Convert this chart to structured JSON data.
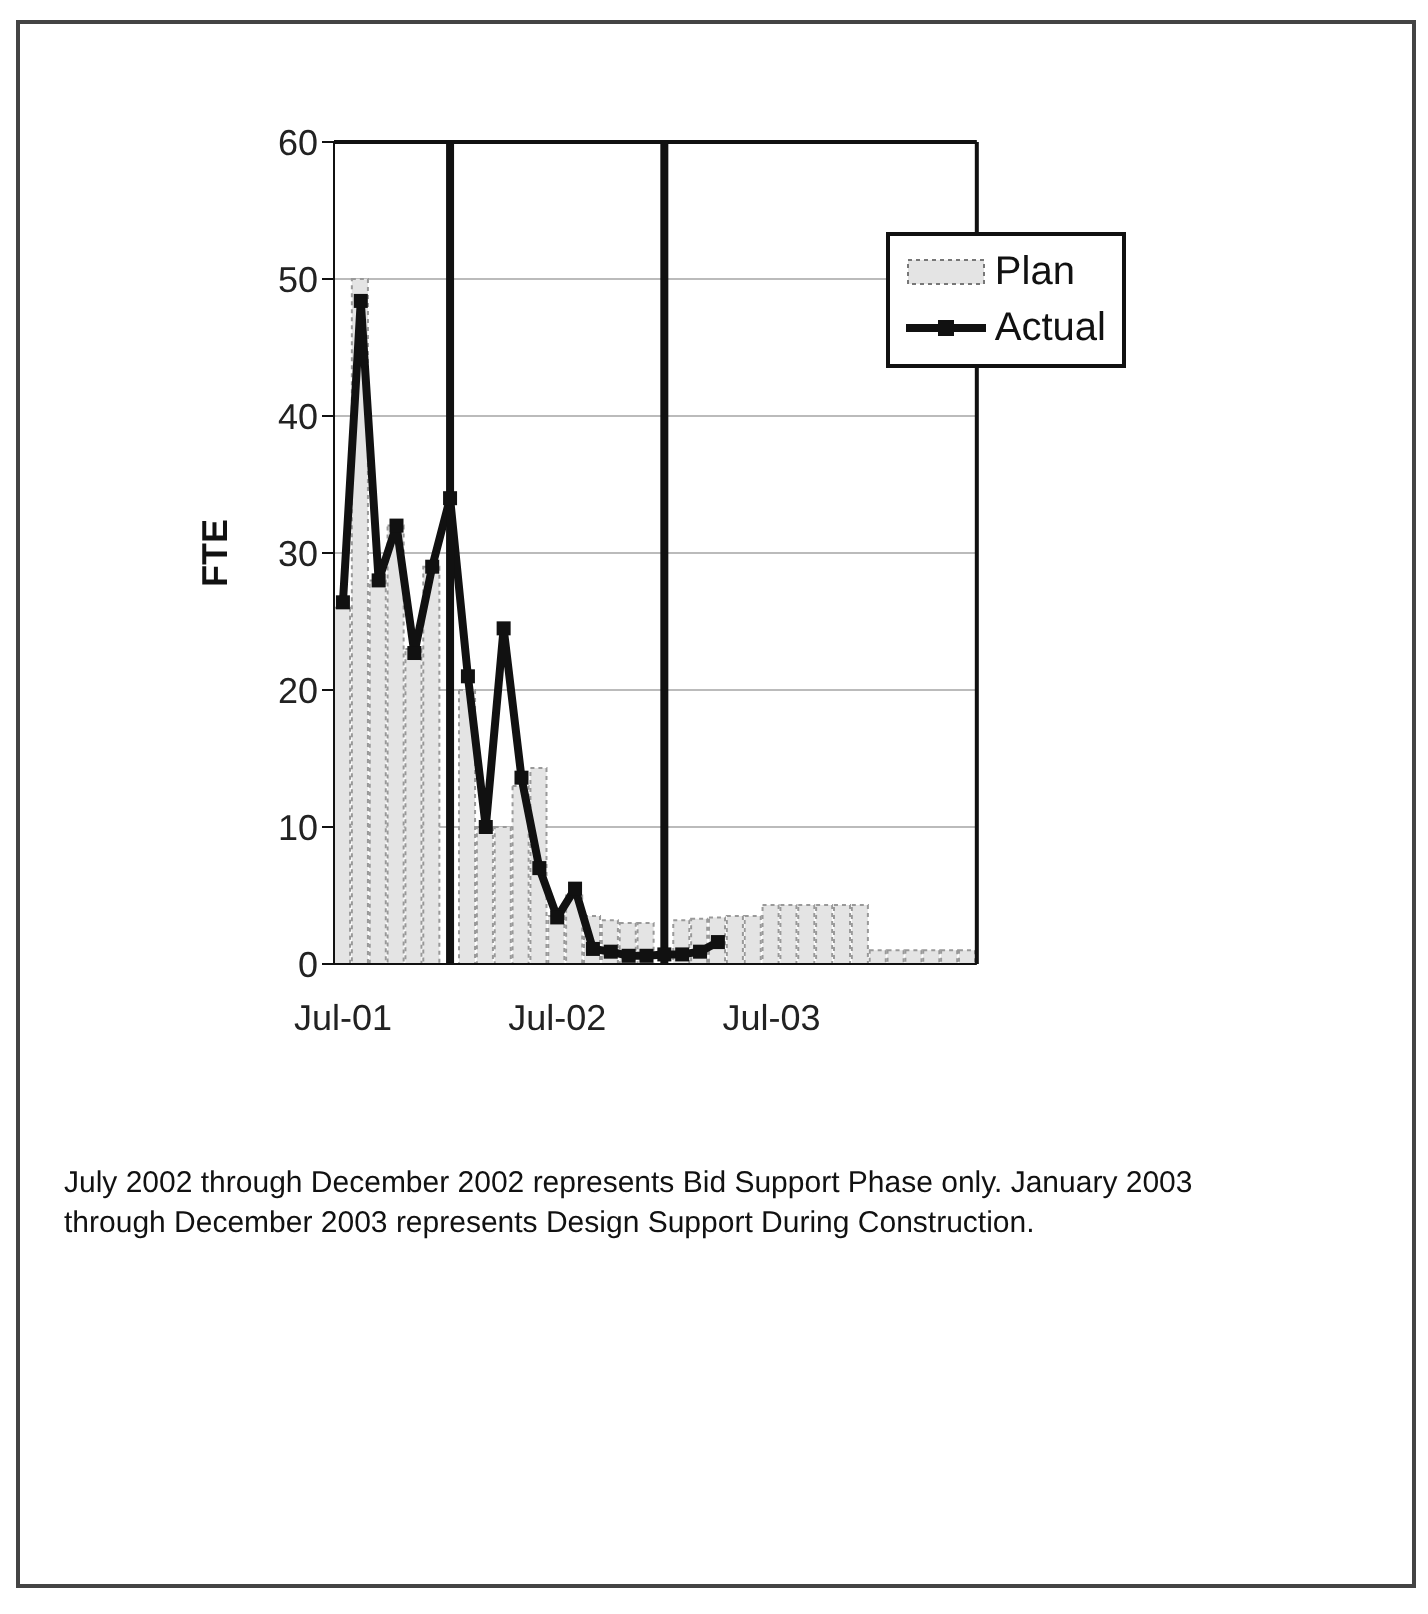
{
  "chart_data": {
    "type": "bar",
    "ylabel": "FTE",
    "x": [
      "2001-07",
      "2001-08",
      "2001-09",
      "2001-10",
      "2001-11",
      "2001-12",
      "2002-01",
      "2002-02",
      "2002-03",
      "2002-04",
      "2002-05",
      "2002-06",
      "2002-07",
      "2002-08",
      "2002-09",
      "2002-10",
      "2002-11",
      "2002-12",
      "2003-01",
      "2003-02",
      "2003-03",
      "2003-04",
      "2003-05",
      "2003-06",
      "2003-07",
      "2003-08",
      "2003-09",
      "2003-10",
      "2003-11",
      "2003-12",
      "2004-01",
      "2004-02",
      "2004-03",
      "2004-04",
      "2004-05",
      "2004-06"
    ],
    "series": [
      {
        "name": "Plan",
        "color": "#e4e4e4",
        "values": [
          26,
          50,
          28,
          32,
          23,
          29,
          null,
          20,
          10,
          10,
          13,
          14.3,
          3.5,
          5,
          3.5,
          3.2,
          3,
          3,
          null,
          3.2,
          3.3,
          3.4,
          3.5,
          3.5,
          4.3,
          4.3,
          4.3,
          4.3,
          4.3,
          4.3,
          1,
          1,
          1,
          1,
          1,
          1
        ]
      },
      {
        "name": "Actual",
        "type": "line",
        "color": "#111111",
        "marker": "square",
        "line_style": "solid",
        "values": [
          26.4,
          48.4,
          28,
          32,
          22.7,
          29,
          34,
          21,
          10,
          24.5,
          13.6,
          7,
          3.4,
          5.5,
          1.1,
          0.9,
          0.6,
          0.6,
          0.7,
          0.7,
          0.9,
          1.6,
          null,
          null,
          null,
          null,
          null,
          null,
          null,
          null,
          null,
          null,
          null,
          null,
          null,
          null
        ]
      }
    ],
    "xlim": [
      "2001-06-16",
      "2004-06-16"
    ],
    "xticks": [
      {
        "value": "2001-07",
        "label": "Jul-01"
      },
      {
        "value": "2002-07",
        "label": "Jul-02"
      },
      {
        "value": "2003-07",
        "label": "Jul-03"
      }
    ],
    "ylim": [
      0,
      60
    ],
    "yticks": [
      0,
      10,
      20,
      30,
      40,
      50,
      60
    ],
    "grid": "y",
    "legend": "top right",
    "ref_lines": [
      {
        "axis": "x",
        "value": "2002-01",
        "color": "#111111"
      },
      {
        "axis": "x",
        "value": "2003-01",
        "color": "#111111"
      }
    ],
    "annotations": [
      "July 2002 through December 2002 represents Bid Support Phase only.  January 2003 through December 2003 represents Design Support During Construction."
    ]
  }
}
